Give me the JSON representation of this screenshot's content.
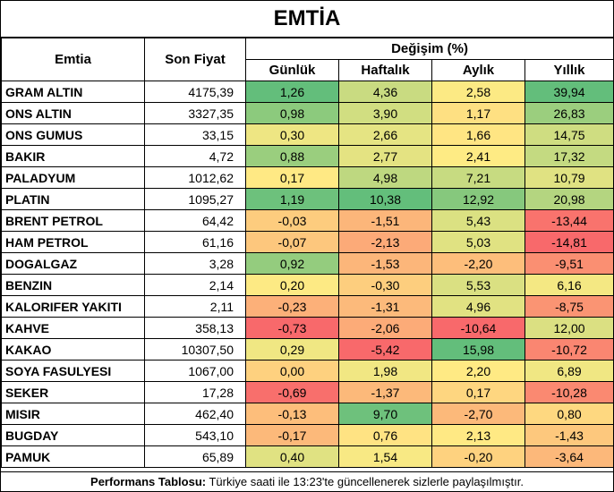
{
  "title": "EMTİA",
  "headers": {
    "name": "Emtia",
    "price": "Son Fiyat",
    "change_group": "Değişim (%)",
    "periods": [
      "Günlük",
      "Haftalık",
      "Aylık",
      "Yıllık"
    ]
  },
  "footer": {
    "label": "Performans Tablosu:",
    "text": " Türkiye saati ile 13:23'te güncellenerek sizlerle paylaşılmıştır."
  },
  "colors": {
    "strong_positive": "#63be7b",
    "neutral": "#ffeb84",
    "strong_negative": "#f8696b"
  },
  "chart_data": {
    "type": "table",
    "title": "EMTİA",
    "columns": [
      "Emtia",
      "Son Fiyat",
      "Günlük",
      "Haftalık",
      "Aylık",
      "Yıllık"
    ],
    "rows": [
      {
        "name": "GRAM ALTIN",
        "price": "4175,39",
        "values": [
          "1,26",
          "4,36",
          "2,58",
          "39,94"
        ]
      },
      {
        "name": "ONS ALTIN",
        "price": "3327,35",
        "values": [
          "0,98",
          "3,90",
          "1,17",
          "26,83"
        ]
      },
      {
        "name": "ONS GUMUS",
        "price": "33,15",
        "values": [
          "0,30",
          "2,66",
          "1,66",
          "14,75"
        ]
      },
      {
        "name": "BAKIR",
        "price": "4,72",
        "values": [
          "0,88",
          "2,77",
          "2,41",
          "17,32"
        ]
      },
      {
        "name": "PALADYUM",
        "price": "1012,62",
        "values": [
          "0,17",
          "4,98",
          "7,21",
          "10,79"
        ]
      },
      {
        "name": "PLATIN",
        "price": "1095,27",
        "values": [
          "1,19",
          "10,38",
          "12,92",
          "20,98"
        ]
      },
      {
        "name": "BRENT PETROL",
        "price": "64,42",
        "values": [
          "-0,03",
          "-1,51",
          "5,43",
          "-13,44"
        ]
      },
      {
        "name": "HAM PETROL",
        "price": "61,16",
        "values": [
          "-0,07",
          "-2,13",
          "5,03",
          "-14,81"
        ]
      },
      {
        "name": "DOGALGAZ",
        "price": "3,28",
        "values": [
          "0,92",
          "-1,53",
          "-2,20",
          "-9,51"
        ]
      },
      {
        "name": "BENZIN",
        "price": "2,14",
        "values": [
          "0,20",
          "-0,30",
          "5,53",
          "6,16"
        ]
      },
      {
        "name": "KALORIFER YAKITI",
        "price": "2,11",
        "values": [
          "-0,23",
          "-1,31",
          "4,96",
          "-8,75"
        ]
      },
      {
        "name": "KAHVE",
        "price": "358,13",
        "values": [
          "-0,73",
          "-2,06",
          "-10,64",
          "12,00"
        ]
      },
      {
        "name": "KAKAO",
        "price": "10307,50",
        "values": [
          "0,29",
          "-5,42",
          "15,98",
          "-10,72"
        ]
      },
      {
        "name": "SOYA FASULYESI",
        "price": "1067,00",
        "values": [
          "0,00",
          "1,98",
          "2,20",
          "6,89"
        ]
      },
      {
        "name": "SEKER",
        "price": "17,28",
        "values": [
          "-0,69",
          "-1,37",
          "0,17",
          "-10,28"
        ]
      },
      {
        "name": "MISIR",
        "price": "462,40",
        "values": [
          "-0,13",
          "9,70",
          "-2,70",
          "0,80"
        ]
      },
      {
        "name": "BUGDAY",
        "price": "543,10",
        "values": [
          "-0,17",
          "0,76",
          "2,13",
          "-1,43"
        ]
      },
      {
        "name": "PAMUK",
        "price": "65,89",
        "values": [
          "0,40",
          "1,54",
          "-0,20",
          "-3,64"
        ]
      }
    ]
  }
}
